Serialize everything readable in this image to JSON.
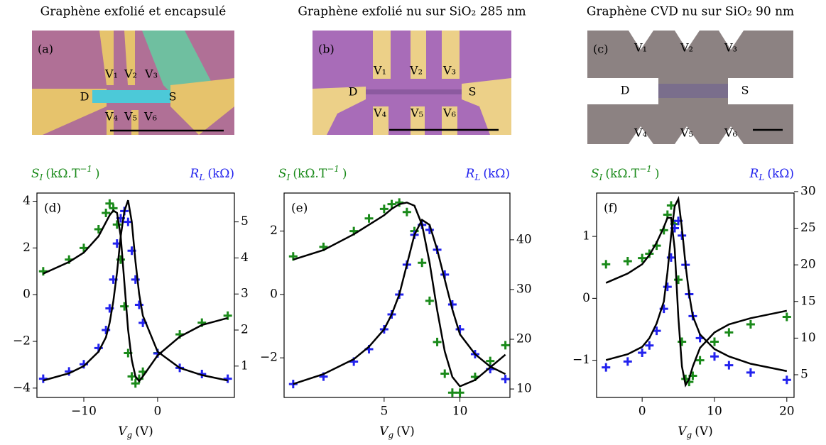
{
  "micrographs": [
    {
      "title": "Graphène exfolié et encapsulé",
      "panel_label": "(a)",
      "labels": [
        "V₁",
        "V₂",
        "V₃",
        "D",
        "S",
        "V₄",
        "V₅",
        "V₆"
      ]
    },
    {
      "title": "Graphène exfolié nu sur SiO₂ 285 nm",
      "panel_label": "(b)",
      "labels": [
        "V₁",
        "V₂",
        "V₃",
        "D",
        "S",
        "V₄",
        "V₅",
        "V₆"
      ]
    },
    {
      "title": "Graphène CVD nu sur SiO₂ 90 nm",
      "panel_label": "(c)",
      "labels": [
        "V₁",
        "V₂",
        "V₃",
        "D",
        "S",
        "V₄",
        "V₅",
        "V₆"
      ]
    }
  ],
  "chart_data": [
    {
      "type": "line",
      "panel_label": "(d)",
      "ylabel": [
        "S",
        "I",
        "(kΩ.T",
        "−1",
        ")"
      ],
      "y2label": [
        "R",
        "L",
        "(kΩ)"
      ],
      "xlabel": [
        "V",
        "g",
        "(V)"
      ],
      "xlim": [
        -16.35,
        10.4
      ],
      "xticks": [
        {
          "value": -10,
          "label": "−10"
        },
        0
      ],
      "ylim": [
        -4.4,
        4.35
      ],
      "yticks": [
        {
          "value": -4,
          "label": "−4"
        },
        {
          "value": -2,
          "label": "−2"
        },
        0,
        2,
        4
      ],
      "y2lim": [
        0.13,
        5.8
      ],
      "y2ticks": [
        1,
        2,
        3,
        4,
        5
      ],
      "x": [
        -15.5,
        -12,
        -10,
        -8,
        -7,
        -6.5,
        -6,
        -5.5,
        -5,
        -4.5,
        -4,
        -3.5,
        -3,
        -2.5,
        -2,
        0,
        3,
        6,
        9.5
      ],
      "series": [
        {
          "color": "#1a8a1a",
          "style": "markers",
          "values": [
            1.0,
            1.5,
            2.0,
            2.8,
            3.5,
            3.9,
            3.7,
            3.0,
            1.5,
            -0.5,
            -2.5,
            -3.5,
            -3.8,
            -3.6,
            -3.3,
            -2.5,
            -1.7,
            -1.2,
            -0.9
          ]
        },
        {
          "color": "#2222ee",
          "style": "markers",
          "axis": "y2",
          "values": [
            0.65,
            0.85,
            1.05,
            1.5,
            2.0,
            2.6,
            3.4,
            4.4,
            5.1,
            5.3,
            5.0,
            4.2,
            3.4,
            2.7,
            2.2,
            1.35,
            0.95,
            0.78,
            0.65
          ]
        },
        {
          "color": "#000000",
          "style": "line",
          "values": [
            0.9,
            1.4,
            1.8,
            2.5,
            3.1,
            3.4,
            3.6,
            3.5,
            2.5,
            0.5,
            -1.5,
            -2.8,
            -3.5,
            -3.7,
            -3.5,
            -2.6,
            -1.8,
            -1.3,
            -1.0
          ]
        },
        {
          "color": "#000000",
          "style": "line",
          "axis": "y2",
          "values": [
            0.6,
            0.8,
            1.0,
            1.4,
            1.8,
            2.2,
            2.8,
            3.6,
            4.6,
            5.3,
            5.6,
            5.0,
            3.9,
            3.0,
            2.4,
            1.4,
            0.95,
            0.75,
            0.6
          ]
        }
      ]
    },
    {
      "type": "line",
      "panel_label": "(e)",
      "ylabel": [
        "S",
        "I",
        "(kΩ.T",
        "−1",
        ")"
      ],
      "y2label": [
        "R",
        "L",
        "(kΩ)"
      ],
      "xlabel": [
        "V",
        "g",
        "(V)"
      ],
      "xlim": [
        -1.6,
        13.3
      ],
      "xticks": [
        5,
        10
      ],
      "ylim": [
        -3.25,
        3.2
      ],
      "yticks": [
        {
          "value": -2,
          "label": "−2"
        },
        0,
        2
      ],
      "y2lim": [
        8.3,
        49.4
      ],
      "y2ticks": [
        10,
        20,
        30,
        40
      ],
      "x": [
        -1,
        1,
        3,
        4,
        5,
        5.5,
        6,
        6.5,
        7,
        7.5,
        8,
        8.5,
        9,
        9.5,
        10,
        11,
        12,
        13
      ],
      "series": [
        {
          "color": "#1a8a1a",
          "style": "markers",
          "values": [
            1.2,
            1.5,
            2.0,
            2.4,
            2.7,
            2.85,
            2.9,
            2.6,
            2.0,
            1.0,
            -0.2,
            -1.5,
            -2.5,
            -3.1,
            -3.1,
            -2.6,
            -2.1,
            -1.6
          ]
        },
        {
          "color": "#2222ee",
          "style": "markers",
          "axis": "y2",
          "values": [
            11,
            12.5,
            15.5,
            18,
            22,
            25,
            29,
            35,
            41,
            43,
            42,
            38,
            33,
            27,
            22,
            17,
            14,
            12
          ]
        },
        {
          "color": "#000000",
          "style": "line",
          "values": [
            1.1,
            1.4,
            1.9,
            2.2,
            2.5,
            2.7,
            2.85,
            2.9,
            2.8,
            2.2,
            1.0,
            -0.5,
            -1.8,
            -2.6,
            -2.9,
            -2.7,
            -2.3,
            -1.9
          ]
        },
        {
          "color": "#000000",
          "style": "line",
          "axis": "y2",
          "values": [
            11,
            13,
            16,
            18.5,
            22,
            25,
            29,
            35,
            41,
            44,
            43,
            38,
            32,
            26,
            21,
            17,
            14.5,
            13
          ]
        }
      ]
    },
    {
      "type": "line",
      "panel_label": "(f)",
      "ylabel": [
        "S",
        "I",
        "(kΩ.T",
        "−1",
        ")"
      ],
      "y2label": [
        "R",
        "L",
        "(kΩ)"
      ],
      "xlabel": [
        "V",
        "g",
        "(V)"
      ],
      "xlim": [
        -6.3,
        21
      ],
      "xticks": [
        0,
        10,
        20
      ],
      "ylim": [
        -1.6,
        1.7
      ],
      "yticks": [
        {
          "value": -1,
          "label": "−1"
        },
        0,
        1
      ],
      "y2lim": [
        1.9,
        29.8
      ],
      "y2ticks": [
        5,
        10,
        15,
        20,
        25,
        30
      ],
      "x": [
        -5,
        -2,
        0,
        1,
        2,
        3,
        3.5,
        4,
        4.5,
        5,
        5.5,
        6,
        6.5,
        7,
        8,
        10,
        12,
        15,
        20
      ],
      "series": [
        {
          "color": "#1a8a1a",
          "style": "markers",
          "values": [
            0.55,
            0.6,
            0.65,
            0.72,
            0.85,
            1.1,
            1.35,
            1.5,
            1.2,
            0.3,
            -0.7,
            -1.3,
            -1.35,
            -1.25,
            -1.0,
            -0.7,
            -0.55,
            -0.42,
            -0.3
          ]
        },
        {
          "color": "#2222ee",
          "style": "markers",
          "axis": "y2",
          "values": [
            6,
            6.8,
            8,
            9,
            11,
            14,
            17,
            21,
            25,
            26,
            24,
            20,
            16,
            13,
            10,
            7.5,
            6.3,
            5.3,
            4.3
          ]
        },
        {
          "color": "#000000",
          "style": "line",
          "values": [
            0.25,
            0.4,
            0.55,
            0.7,
            0.9,
            1.15,
            1.3,
            1.3,
            0.8,
            -0.3,
            -1.1,
            -1.4,
            -1.3,
            -1.1,
            -0.8,
            -0.55,
            -0.42,
            -0.32,
            -0.2
          ]
        },
        {
          "color": "#000000",
          "style": "line",
          "axis": "y2",
          "values": [
            7,
            7.8,
            8.8,
            10,
            12,
            15,
            19,
            24,
            28,
            29,
            25,
            20,
            16,
            13,
            10.5,
            8.5,
            7.5,
            6.5,
            5.5
          ]
        }
      ]
    }
  ]
}
